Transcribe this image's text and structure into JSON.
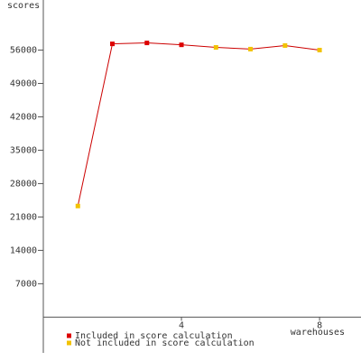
{
  "chart_data": {
    "type": "line",
    "y_label": "scores",
    "x_label": "warehouses",
    "x": [
      1,
      2,
      3,
      4,
      5,
      6,
      7,
      8
    ],
    "series": [
      {
        "name": "Included in score calculation",
        "color": "#dd0000",
        "values": [
          null,
          57300,
          57500,
          57100,
          null,
          null,
          null,
          null
        ]
      },
      {
        "name": "Not included in score calculation",
        "color": "#f2c200",
        "values": [
          23300,
          null,
          null,
          null,
          56560,
          56200,
          56950,
          56000
        ]
      }
    ],
    "line_color": "#cc0000",
    "xlim": [
      0,
      9.2
    ],
    "ylim": [
      -7500,
      66500
    ],
    "xticks": [
      4,
      8
    ],
    "yticks": [
      7000,
      14000,
      21000,
      28000,
      35000,
      42000,
      49000,
      56000
    ]
  }
}
